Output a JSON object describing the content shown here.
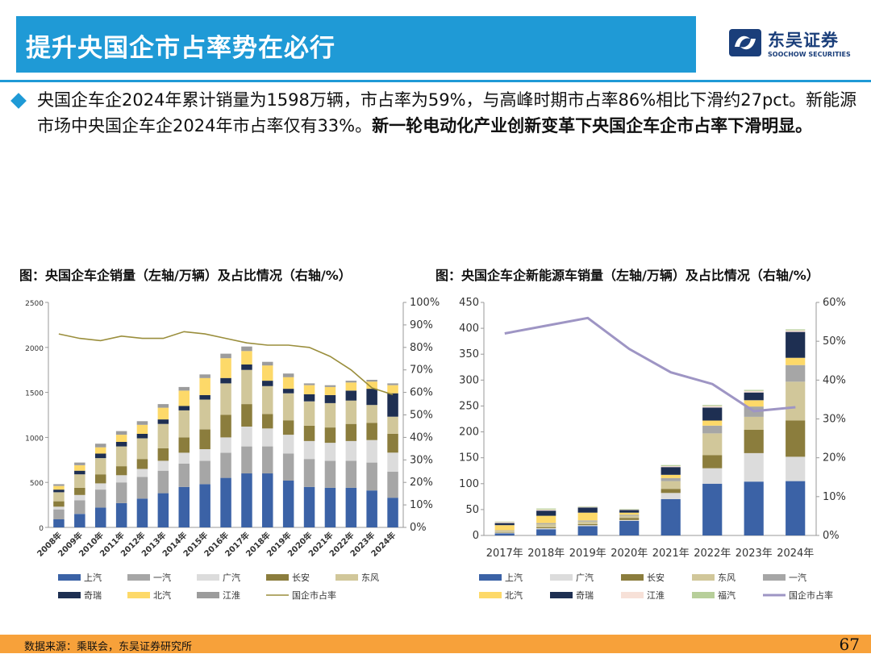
{
  "header": {
    "title": "提升央国企市占率势在必行",
    "logo_cn": "东吴证券",
    "logo_en": "SOOCHOW SECURITIES"
  },
  "summary": {
    "normal": "央国企车企2024年累计销量为1598万辆，市占率为59%，与高峰时期市占率86%相比下滑约27pct。新能源市场中央国企车企2024年市占率仅有33%。",
    "bold": "新一轮电动化产业创新变革下央国企车企市占率下滑明显。"
  },
  "footer": {
    "source": "数据来源：乘联会，东吴证券研究所",
    "page": "67"
  },
  "colors": {
    "上汽": "#3b62a6",
    "一汽": "#a6a6a6",
    "广汽": "#dcdcdc",
    "长安": "#8b7d3d",
    "东风": "#d1c79a",
    "奇瑞": "#1e2f52",
    "北汽": "#fdd969",
    "江淮": "#9c9c9c",
    "国企市占率": "#9a8e3c",
    "新能源江淮": "#f7e1d8",
    "福汽": "#b7cf9a",
    "新能源国企市占率": "#9e95c4"
  },
  "chart_data": [
    {
      "type": "bar",
      "stacked": true,
      "title": "图：央国企车企销量（左轴/万辆）及占比情况（右轴/%）",
      "categories": [
        "2008年",
        "2009年",
        "2010年",
        "2011年",
        "2012年",
        "2013年",
        "2014年",
        "2015年",
        "2016年",
        "2017年",
        "2018年",
        "2019年",
        "2020年",
        "2021年",
        "2022年",
        "2023年",
        "2024年"
      ],
      "ylim": [
        0,
        2500
      ],
      "yticks": [
        "0",
        "500",
        "1000",
        "1500",
        "2000",
        "2500"
      ],
      "y2lim": [
        0,
        100
      ],
      "y2ticks": [
        "0%",
        "10%",
        "20%",
        "30%",
        "40%",
        "50%",
        "60%",
        "70%",
        "80%",
        "90%",
        "100%"
      ],
      "series": [
        {
          "name": "上汽",
          "values": [
            90,
            150,
            220,
            270,
            320,
            380,
            450,
            480,
            550,
            600,
            600,
            520,
            450,
            440,
            440,
            410,
            330
          ]
        },
        {
          "name": "一汽",
          "values": [
            110,
            150,
            200,
            230,
            240,
            250,
            260,
            260,
            280,
            300,
            300,
            300,
            310,
            300,
            300,
            310,
            290
          ]
        },
        {
          "name": "广汽",
          "values": [
            30,
            60,
            70,
            80,
            90,
            110,
            120,
            130,
            170,
            220,
            200,
            210,
            200,
            200,
            220,
            250,
            210
          ]
        },
        {
          "name": "长安",
          "values": [
            60,
            80,
            100,
            100,
            110,
            140,
            170,
            220,
            250,
            250,
            160,
            160,
            170,
            170,
            190,
            190,
            210
          ]
        },
        {
          "name": "东风",
          "values": [
            100,
            150,
            180,
            220,
            230,
            270,
            300,
            330,
            350,
            380,
            310,
            300,
            270,
            270,
            260,
            200,
            190
          ]
        },
        {
          "name": "奇瑞",
          "values": [
            30,
            40,
            50,
            50,
            50,
            50,
            50,
            50,
            60,
            60,
            60,
            50,
            80,
            90,
            110,
            180,
            260
          ]
        },
        {
          "name": "北汽",
          "values": [
            40,
            60,
            70,
            80,
            100,
            130,
            170,
            190,
            220,
            150,
            170,
            130,
            100,
            90,
            90,
            80,
            90
          ]
        },
        {
          "name": "江淮",
          "values": [
            20,
            30,
            40,
            40,
            40,
            40,
            40,
            40,
            50,
            50,
            40,
            40,
            20,
            20,
            20,
            20,
            20
          ]
        }
      ],
      "legend": [
        "上汽",
        "一汽",
        "广汽",
        "长安",
        "东风",
        "奇瑞",
        "北汽",
        "江淮",
        "国企市占率"
      ],
      "line": {
        "name": "国企市占率",
        "values": [
          86,
          84,
          83,
          85,
          84,
          84,
          87,
          86,
          84,
          82,
          81,
          81,
          80,
          76,
          70,
          62,
          59
        ]
      }
    },
    {
      "type": "bar",
      "stacked": true,
      "title": "图：央国企车企新能源车销量（左轴/万辆）及占比情况（右轴/%）",
      "categories": [
        "2017年",
        "2018年",
        "2019年",
        "2020年",
        "2021年",
        "2022年",
        "2023年",
        "2024年"
      ],
      "ylim": [
        0,
        450
      ],
      "yticks": [
        "0",
        "50",
        "100",
        "150",
        "200",
        "250",
        "300",
        "350",
        "400",
        "450"
      ],
      "y2lim": [
        0,
        60
      ],
      "y2ticks": [
        "0%",
        "10%",
        "20%",
        "30%",
        "40%",
        "50%",
        "60%"
      ],
      "series": [
        {
          "name": "上汽",
          "values": [
            4,
            12,
            18,
            28,
            70,
            100,
            104,
            105
          ]
        },
        {
          "name": "广汽",
          "values": [
            1,
            2,
            2,
            2,
            12,
            30,
            55,
            47
          ]
        },
        {
          "name": "长安",
          "values": [
            1,
            2,
            2,
            4,
            8,
            25,
            45,
            70
          ]
        },
        {
          "name": "东风",
          "values": [
            3,
            6,
            5,
            4,
            15,
            42,
            25,
            75
          ]
        },
        {
          "name": "一汽",
          "values": [
            1,
            2,
            2,
            2,
            6,
            15,
            20,
            32
          ]
        },
        {
          "name": "北汽",
          "values": [
            10,
            14,
            15,
            4,
            6,
            10,
            12,
            14
          ]
        },
        {
          "name": "奇瑞",
          "values": [
            4,
            10,
            10,
            5,
            15,
            25,
            15,
            50
          ]
        },
        {
          "name": "江淮",
          "values": [
            2,
            2,
            1,
            1,
            2,
            3,
            3,
            3
          ]
        },
        {
          "name": "福汽",
          "values": [
            1,
            2,
            1,
            1,
            2,
            2,
            2,
            2
          ]
        }
      ],
      "legend": [
        "上汽",
        "广汽",
        "长安",
        "东风",
        "一汽",
        "北汽",
        "奇瑞",
        "江淮",
        "福汽",
        "国企市占率"
      ],
      "line": {
        "name": "国企市占率",
        "values": [
          52,
          54,
          56,
          48,
          42,
          39,
          32,
          33
        ]
      }
    }
  ]
}
